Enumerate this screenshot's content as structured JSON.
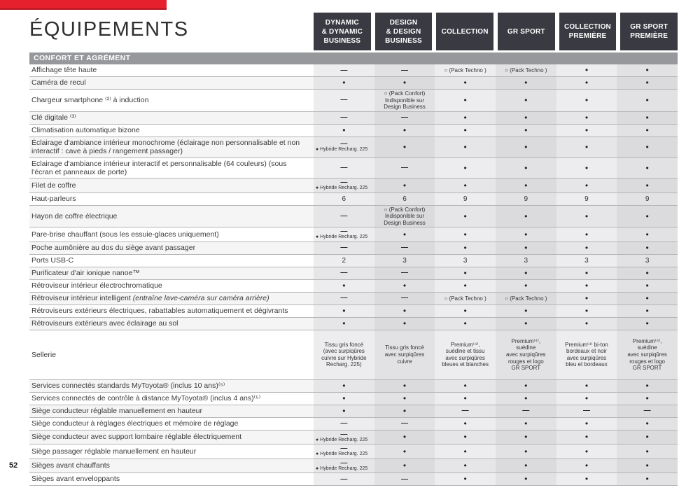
{
  "page": {
    "number": "52"
  },
  "header": {
    "title": "ÉQUIPEMENTS",
    "section": "CONFORT ET AGRÉMENT",
    "accent_red": "#e6202c",
    "header_bg": "#3a3a43",
    "section_bg": "#97989b"
  },
  "table": {
    "columns": [
      "DYNAMIC|& DYNAMIC|BUSINESS",
      "DESIGN|& DESIGN|BUSINESS",
      "COLLECTION",
      "GR SPORT",
      "COLLECTION|PREMIÈRE",
      "GR SPORT|PREMIÈRE"
    ],
    "rows": [
      {
        "label": "Affichage tête haute",
        "cells": [
          "—",
          "—",
          "○ (Pack Techno )",
          "○ (Pack Techno )",
          "●",
          "●"
        ]
      },
      {
        "label": "Caméra de recul",
        "cells": [
          "●",
          "●",
          "●",
          "●",
          "●",
          "●"
        ]
      },
      {
        "label": "Chargeur smartphone ⁽²⁾ à induction",
        "cells": [
          "—",
          "○ (Pack Confort)|Indisponible sur|Design Business",
          "●",
          "●",
          "●",
          "●"
        ]
      },
      {
        "label": "Clé digitale ⁽³⁾",
        "cells": [
          "—",
          "—",
          "●",
          "●",
          "●",
          "●"
        ]
      },
      {
        "label": "Climatisation automatique bizone",
        "cells": [
          "●",
          "●",
          "●",
          "●",
          "●",
          "●"
        ]
      },
      {
        "label": "Éclairage d'ambiance intérieur monochrome (éclairage non personnalisable et non interactif : cave à pieds / rangement passager)",
        "cells": [
          "—|● Hybride Recharg. 225",
          "●",
          "●",
          "●",
          "●",
          "●"
        ]
      },
      {
        "label": "Eclairage d'ambiance intérieur interactif et personnalisable (64 couleurs) (sous l'écran et panneaux de porte)",
        "cells": [
          "—",
          "—",
          "●",
          "●",
          "●",
          "●"
        ]
      },
      {
        "label": "Filet de coffre",
        "cells": [
          "—|● Hybride Recharg. 225",
          "●",
          "●",
          "●",
          "●",
          "●"
        ]
      },
      {
        "label": "Haut-parleurs",
        "cells": [
          "6",
          "6",
          "9",
          "9",
          "9",
          "9"
        ]
      },
      {
        "label": "Hayon de coffre électrique",
        "cells": [
          "—",
          "○ (Pack Confort)|Indisponible sur|Design Business",
          "●",
          "●",
          "●",
          "●"
        ]
      },
      {
        "label": "Pare-brise chauffant (sous les essuie-glaces uniquement)",
        "cells": [
          "—|● Hybride Recharg. 225",
          "●",
          "●",
          "●",
          "●",
          "●"
        ]
      },
      {
        "label": "Poche aumônière au dos du siège avant passager",
        "cells": [
          "—",
          "—",
          "●",
          "●",
          "●",
          "●"
        ]
      },
      {
        "label": "Ports USB-C",
        "cells": [
          "2",
          "3",
          "3",
          "3",
          "3",
          "3"
        ]
      },
      {
        "label": "Purificateur d'air ionique nanoe™",
        "cells": [
          "—",
          "—",
          "●",
          "●",
          "●",
          "●"
        ]
      },
      {
        "label": "Rétroviseur intérieur électrochromatique",
        "cells": [
          "●",
          "●",
          "●",
          "●",
          "●",
          "●"
        ]
      },
      {
        "label": "Rétroviseur intérieur intelligent *(entraîne lave-caméra sur caméra arrière)*",
        "cells": [
          "—",
          "—",
          "○ (Pack Techno )",
          "○ (Pack Techno )",
          "●",
          "●"
        ]
      },
      {
        "label": "Rétroviseurs extérieurs électriques, rabattables automatiquement et dégivrants",
        "cells": [
          "●",
          "●",
          "●",
          "●",
          "●",
          "●"
        ]
      },
      {
        "label": "Rétroviseurs extérieurs avec éclairage au sol",
        "cells": [
          "●",
          "●",
          "●",
          "●",
          "●",
          "●"
        ]
      },
      {
        "label": "Sellerie",
        "tall": true,
        "cells": [
          "Tissu gris foncé|(avec surpiqûres|cuivre sur Hybride|Recharg. 225)",
          "Tissu gris foncé|avec surpiqûres|cuivre",
          "Premium⁽⁴⁾,|suédine et tissu|avec surpiqûres|bleues et blanches",
          "Premium⁽⁴⁾,|suédine|avec surpiqûres|rouges et logo|GR SPORT",
          "Premium⁽⁴⁾ bi-ton|bordeaux et noir|avec surpiqûres|bleu et bordeaux",
          "Premium⁽⁴⁾,|suédine|avec surpiqûres|rouges et logo|GR SPORT"
        ]
      },
      {
        "label": "Services connectés standards MyToyota® (inclus 10 ans)⁽⁵⁾",
        "cells": [
          "●",
          "●",
          "●",
          "●",
          "●",
          "●"
        ]
      },
      {
        "label": "Services connectés de contrôle à distance MyToyota® (inclus 4 ans)⁽⁵⁾",
        "cells": [
          "●",
          "●",
          "●",
          "●",
          "●",
          "●"
        ]
      },
      {
        "label": "Siège conducteur réglable manuellement en hauteur",
        "cells": [
          "●",
          "●",
          "—",
          "—",
          "—",
          "—"
        ]
      },
      {
        "label": "Siège conducteur à réglages électriques et mémoire de réglage",
        "cells": [
          "—",
          "—",
          "●",
          "●",
          "●",
          "●"
        ]
      },
      {
        "label": "Siège conducteur avec support lombaire réglable électriquement",
        "cells": [
          "—|● Hybride Recharg. 225",
          "●",
          "●",
          "●",
          "●",
          "●"
        ]
      },
      {
        "label": "Siège passager réglable manuellement en hauteur",
        "cells": [
          "—|● Hybride Recharg. 225",
          "●",
          "●",
          "●",
          "●",
          "●"
        ]
      },
      {
        "label": "Sièges avant chauffants",
        "cells": [
          "—|● Hybride Recharg. 225",
          "●",
          "●",
          "●",
          "●",
          "●"
        ]
      },
      {
        "label": "Sièges avant enveloppants",
        "cells": [
          "—",
          "—",
          "●",
          "●",
          "●",
          "●"
        ]
      }
    ]
  }
}
